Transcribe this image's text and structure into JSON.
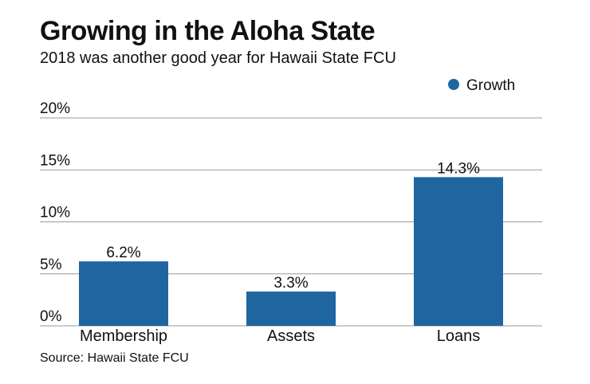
{
  "header": {
    "title": "Growing in the Aloha State",
    "subtitle": "2018 was another good year for Hawaii State FCU"
  },
  "footer": {
    "source": "Source: Hawaii State FCU"
  },
  "chart_data": {
    "type": "bar",
    "title": "Growing in the Aloha State",
    "subtitle": "2018 was another good year for Hawaii State FCU",
    "categories": [
      "Membership",
      "Assets",
      "Loans"
    ],
    "series": [
      {
        "name": "Growth",
        "values": [
          6.2,
          3.3,
          14.3
        ],
        "color": "#1f66a1"
      }
    ],
    "data_labels": [
      "6.2%",
      "3.3%",
      "14.3%"
    ],
    "ylim": [
      0,
      20
    ],
    "yticks": [
      0,
      5,
      10,
      15,
      20
    ],
    "ytick_labels": [
      "0%",
      "5%",
      "10%",
      "15%",
      "20%"
    ],
    "xlabel": "",
    "ylabel": "",
    "grid": true,
    "legend_position": "top-right",
    "colors": {
      "bar": "#1f66a1",
      "grid": "#999999",
      "text": "#111111"
    }
  }
}
